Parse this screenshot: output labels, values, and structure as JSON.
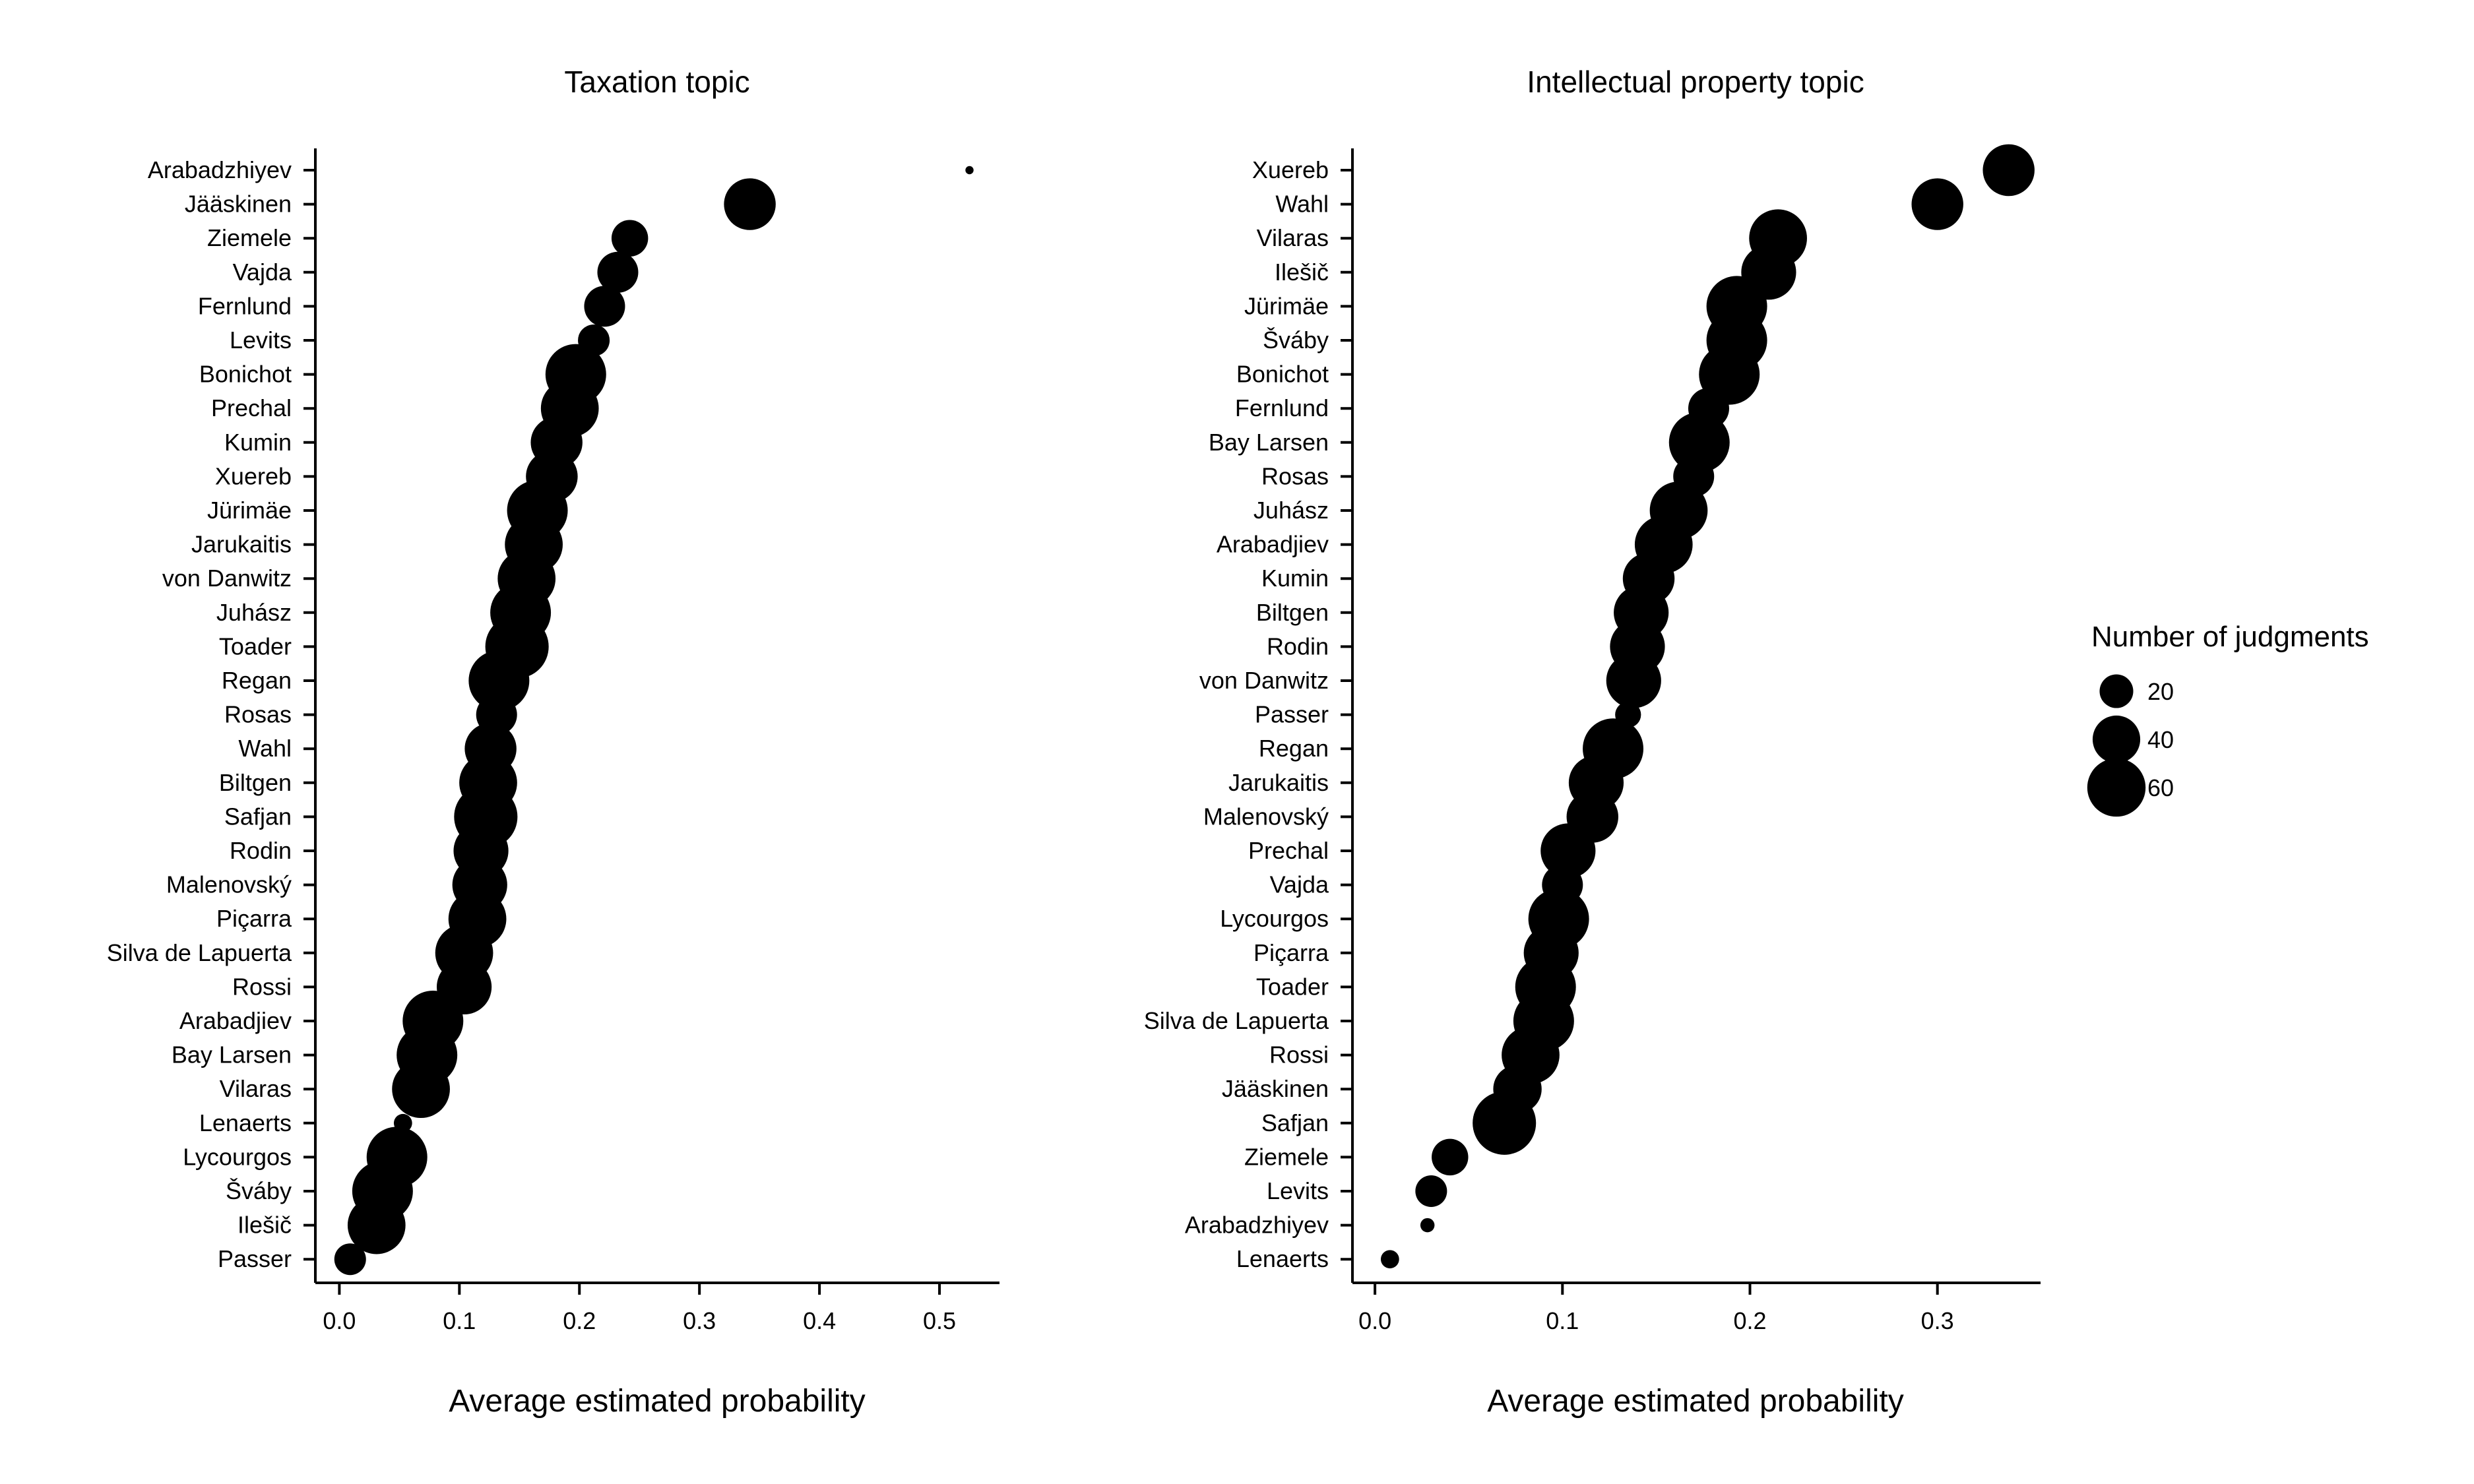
{
  "chart_data": [
    {
      "type": "scatter",
      "title": "Taxation topic",
      "xlabel": "Average estimated probability",
      "ylabel": "",
      "xlim": [
        -0.02,
        0.55
      ],
      "x_ticks": [
        0.0,
        0.1,
        0.2,
        0.3,
        0.4,
        0.5
      ],
      "x_tick_labels": [
        "0.0",
        "0.1",
        "0.2",
        "0.3",
        "0.4",
        "0.5"
      ],
      "grid": false,
      "points": [
        {
          "label": "Arabadzhiyev",
          "x": 0.525,
          "size": 1
        },
        {
          "label": "Jääskinen",
          "x": 0.342,
          "size": 40
        },
        {
          "label": "Ziemele",
          "x": 0.242,
          "size": 20
        },
        {
          "label": "Vajda",
          "x": 0.232,
          "size": 25
        },
        {
          "label": "Fernlund",
          "x": 0.221,
          "size": 25
        },
        {
          "label": "Levits",
          "x": 0.212,
          "size": 15
        },
        {
          "label": "Bonichot",
          "x": 0.197,
          "size": 55
        },
        {
          "label": "Prechal",
          "x": 0.192,
          "size": 50
        },
        {
          "label": "Kumin",
          "x": 0.181,
          "size": 40
        },
        {
          "label": "Xuereb",
          "x": 0.177,
          "size": 40
        },
        {
          "label": "Jürimäe",
          "x": 0.165,
          "size": 55
        },
        {
          "label": "Jarukaitis",
          "x": 0.162,
          "size": 50
        },
        {
          "label": "von Danwitz",
          "x": 0.156,
          "size": 50
        },
        {
          "label": "Juhász",
          "x": 0.151,
          "size": 55
        },
        {
          "label": "Toader",
          "x": 0.148,
          "size": 60
        },
        {
          "label": "Regan",
          "x": 0.133,
          "size": 55
        },
        {
          "label": "Rosas",
          "x": 0.131,
          "size": 25
        },
        {
          "label": "Wahl",
          "x": 0.126,
          "size": 40
        },
        {
          "label": "Biltgen",
          "x": 0.124,
          "size": 50
        },
        {
          "label": "Safjan",
          "x": 0.122,
          "size": 60
        },
        {
          "label": "Rodin",
          "x": 0.118,
          "size": 45
        },
        {
          "label": "Malenovský",
          "x": 0.117,
          "size": 45
        },
        {
          "label": "Piçarra",
          "x": 0.115,
          "size": 50
        },
        {
          "label": "Silva de Lapuerta",
          "x": 0.104,
          "size": 50
        },
        {
          "label": "Rossi",
          "x": 0.104,
          "size": 45
        },
        {
          "label": "Arabadjiev",
          "x": 0.078,
          "size": 55
        },
        {
          "label": "Bay Larsen",
          "x": 0.073,
          "size": 55
        },
        {
          "label": "Vilaras",
          "x": 0.068,
          "size": 50
        },
        {
          "label": "Lenaerts",
          "x": 0.053,
          "size": 5
        },
        {
          "label": "Lycourgos",
          "x": 0.048,
          "size": 55
        },
        {
          "label": "Šváby",
          "x": 0.036,
          "size": 55
        },
        {
          "label": "Ilešič",
          "x": 0.031,
          "size": 50
        },
        {
          "label": "Passer",
          "x": 0.009,
          "size": 15
        }
      ]
    },
    {
      "type": "scatter",
      "title": "Intellectual property topic",
      "xlabel": "Average estimated probability",
      "ylabel": "",
      "xlim": [
        -0.012,
        0.355
      ],
      "x_ticks": [
        0.0,
        0.1,
        0.2,
        0.3
      ],
      "x_tick_labels": [
        "0.0",
        "0.1",
        "0.2",
        "0.3"
      ],
      "grid": false,
      "points": [
        {
          "label": "Xuereb",
          "x": 0.338,
          "size": 40
        },
        {
          "label": "Wahl",
          "x": 0.3,
          "size": 40
        },
        {
          "label": "Vilaras",
          "x": 0.215,
          "size": 50
        },
        {
          "label": "Ilešič",
          "x": 0.21,
          "size": 45
        },
        {
          "label": "Jürimäe",
          "x": 0.193,
          "size": 55
        },
        {
          "label": "Šváby",
          "x": 0.193,
          "size": 55
        },
        {
          "label": "Bonichot",
          "x": 0.189,
          "size": 55
        },
        {
          "label": "Fernlund",
          "x": 0.178,
          "size": 25
        },
        {
          "label": "Bay Larsen",
          "x": 0.173,
          "size": 55
        },
        {
          "label": "Rosas",
          "x": 0.17,
          "size": 25
        },
        {
          "label": "Juhász",
          "x": 0.162,
          "size": 50
        },
        {
          "label": "Arabadjiev",
          "x": 0.154,
          "size": 50
        },
        {
          "label": "Kumin",
          "x": 0.146,
          "size": 40
        },
        {
          "label": "Biltgen",
          "x": 0.142,
          "size": 45
        },
        {
          "label": "Rodin",
          "x": 0.14,
          "size": 45
        },
        {
          "label": "von Danwitz",
          "x": 0.138,
          "size": 45
        },
        {
          "label": "Passer",
          "x": 0.135,
          "size": 10
        },
        {
          "label": "Regan",
          "x": 0.127,
          "size": 55
        },
        {
          "label": "Jarukaitis",
          "x": 0.118,
          "size": 45
        },
        {
          "label": "Malenovský",
          "x": 0.116,
          "size": 40
        },
        {
          "label": "Prechal",
          "x": 0.103,
          "size": 45
        },
        {
          "label": "Vajda",
          "x": 0.1,
          "size": 25
        },
        {
          "label": "Lycourgos",
          "x": 0.098,
          "size": 55
        },
        {
          "label": "Piçarra",
          "x": 0.094,
          "size": 45
        },
        {
          "label": "Toader",
          "x": 0.091,
          "size": 55
        },
        {
          "label": "Silva de Lapuerta",
          "x": 0.09,
          "size": 55
        },
        {
          "label": "Rossi",
          "x": 0.083,
          "size": 50
        },
        {
          "label": "Jääskinen",
          "x": 0.076,
          "size": 35
        },
        {
          "label": "Safjan",
          "x": 0.069,
          "size": 60
        },
        {
          "label": "Ziemele",
          "x": 0.04,
          "size": 20
        },
        {
          "label": "Levits",
          "x": 0.03,
          "size": 15
        },
        {
          "label": "Arabadzhiyev",
          "x": 0.028,
          "size": 3
        },
        {
          "label": "Lenaerts",
          "x": 0.008,
          "size": 5
        }
      ]
    }
  ],
  "legend": {
    "title": "Number of judgments",
    "placement": "right",
    "items": [
      {
        "label": "20",
        "size": 20
      },
      {
        "label": "40",
        "size": 40
      },
      {
        "label": "60",
        "size": 60
      }
    ]
  },
  "colors": {
    "marker": "#000000",
    "axis": "#000000",
    "background": "#ffffff"
  }
}
